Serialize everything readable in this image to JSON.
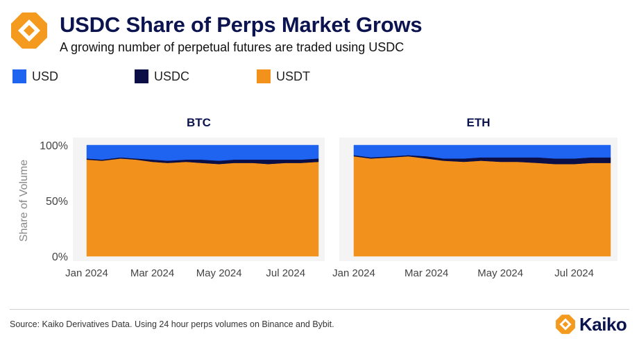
{
  "header": {
    "title": "USDC Share of Perps Market Grows",
    "subtitle": "A growing number of perpetual futures are traded using USDC"
  },
  "colors": {
    "USD": "#1f63f1",
    "USDC": "#0b0f45",
    "USDT": "#f2921d",
    "brand_orange": "#f49a1f",
    "brand_navy": "#0c1450"
  },
  "legend": [
    {
      "label": "USD",
      "color": "#1f63f1"
    },
    {
      "label": "USDC",
      "color": "#0b0f45"
    },
    {
      "label": "USDT",
      "color": "#f2921d"
    }
  ],
  "footer": {
    "source": "Source: Kaiko Derivatives Data. Using 24 hour perps volumes on Binance and Bybit.",
    "brand": "Kaiko"
  },
  "icons": {
    "logo": "kaiko-hexagon-logo-icon"
  },
  "chart_data": [
    {
      "type": "area",
      "stacked": true,
      "title": "BTC",
      "xlabel": "",
      "ylabel": "Share of Volume",
      "ylim": [
        0,
        100
      ],
      "yticks": [
        "0%",
        "50%",
        "100%"
      ],
      "x_tick_labels": [
        "Jan 2024",
        "Mar 2024",
        "May 2024",
        "Jul 2024"
      ],
      "x": [
        "2024-01-01",
        "2024-01-15",
        "2024-02-01",
        "2024-02-15",
        "2024-03-01",
        "2024-03-15",
        "2024-04-01",
        "2024-04-15",
        "2024-05-01",
        "2024-05-15",
        "2024-06-01",
        "2024-06-15",
        "2024-07-01",
        "2024-07-15",
        "2024-07-31"
      ],
      "series": [
        {
          "name": "USDT",
          "values": [
            87,
            86,
            88,
            87,
            85,
            84,
            85,
            84,
            83,
            84,
            84,
            83,
            84,
            84,
            85
          ]
        },
        {
          "name": "USDC",
          "values": [
            1,
            1,
            1,
            1,
            2,
            2,
            2,
            3,
            3,
            3,
            3,
            4,
            3,
            3,
            3
          ]
        },
        {
          "name": "USD",
          "values": [
            12,
            13,
            11,
            12,
            13,
            14,
            13,
            13,
            14,
            13,
            13,
            13,
            13,
            13,
            12
          ]
        }
      ]
    },
    {
      "type": "area",
      "stacked": true,
      "title": "ETH",
      "xlabel": "",
      "ylabel": "",
      "ylim": [
        0,
        100
      ],
      "x_tick_labels": [
        "Jan 2024",
        "Mar 2024",
        "May 2024",
        "Jul 2024"
      ],
      "x": [
        "2024-01-01",
        "2024-01-15",
        "2024-02-01",
        "2024-02-15",
        "2024-03-01",
        "2024-03-15",
        "2024-04-01",
        "2024-04-15",
        "2024-05-01",
        "2024-05-15",
        "2024-06-01",
        "2024-06-15",
        "2024-07-01",
        "2024-07-15",
        "2024-07-31"
      ],
      "series": [
        {
          "name": "USDT",
          "values": [
            90,
            88,
            89,
            90,
            88,
            86,
            85,
            86,
            85,
            85,
            84,
            83,
            83,
            84,
            84
          ]
        },
        {
          "name": "USDC",
          "values": [
            1,
            1,
            1,
            1,
            2,
            2,
            3,
            3,
            4,
            4,
            5,
            5,
            5,
            5,
            5
          ]
        },
        {
          "name": "USD",
          "values": [
            9,
            11,
            10,
            9,
            10,
            12,
            12,
            11,
            11,
            11,
            11,
            12,
            12,
            11,
            11
          ]
        }
      ]
    }
  ]
}
